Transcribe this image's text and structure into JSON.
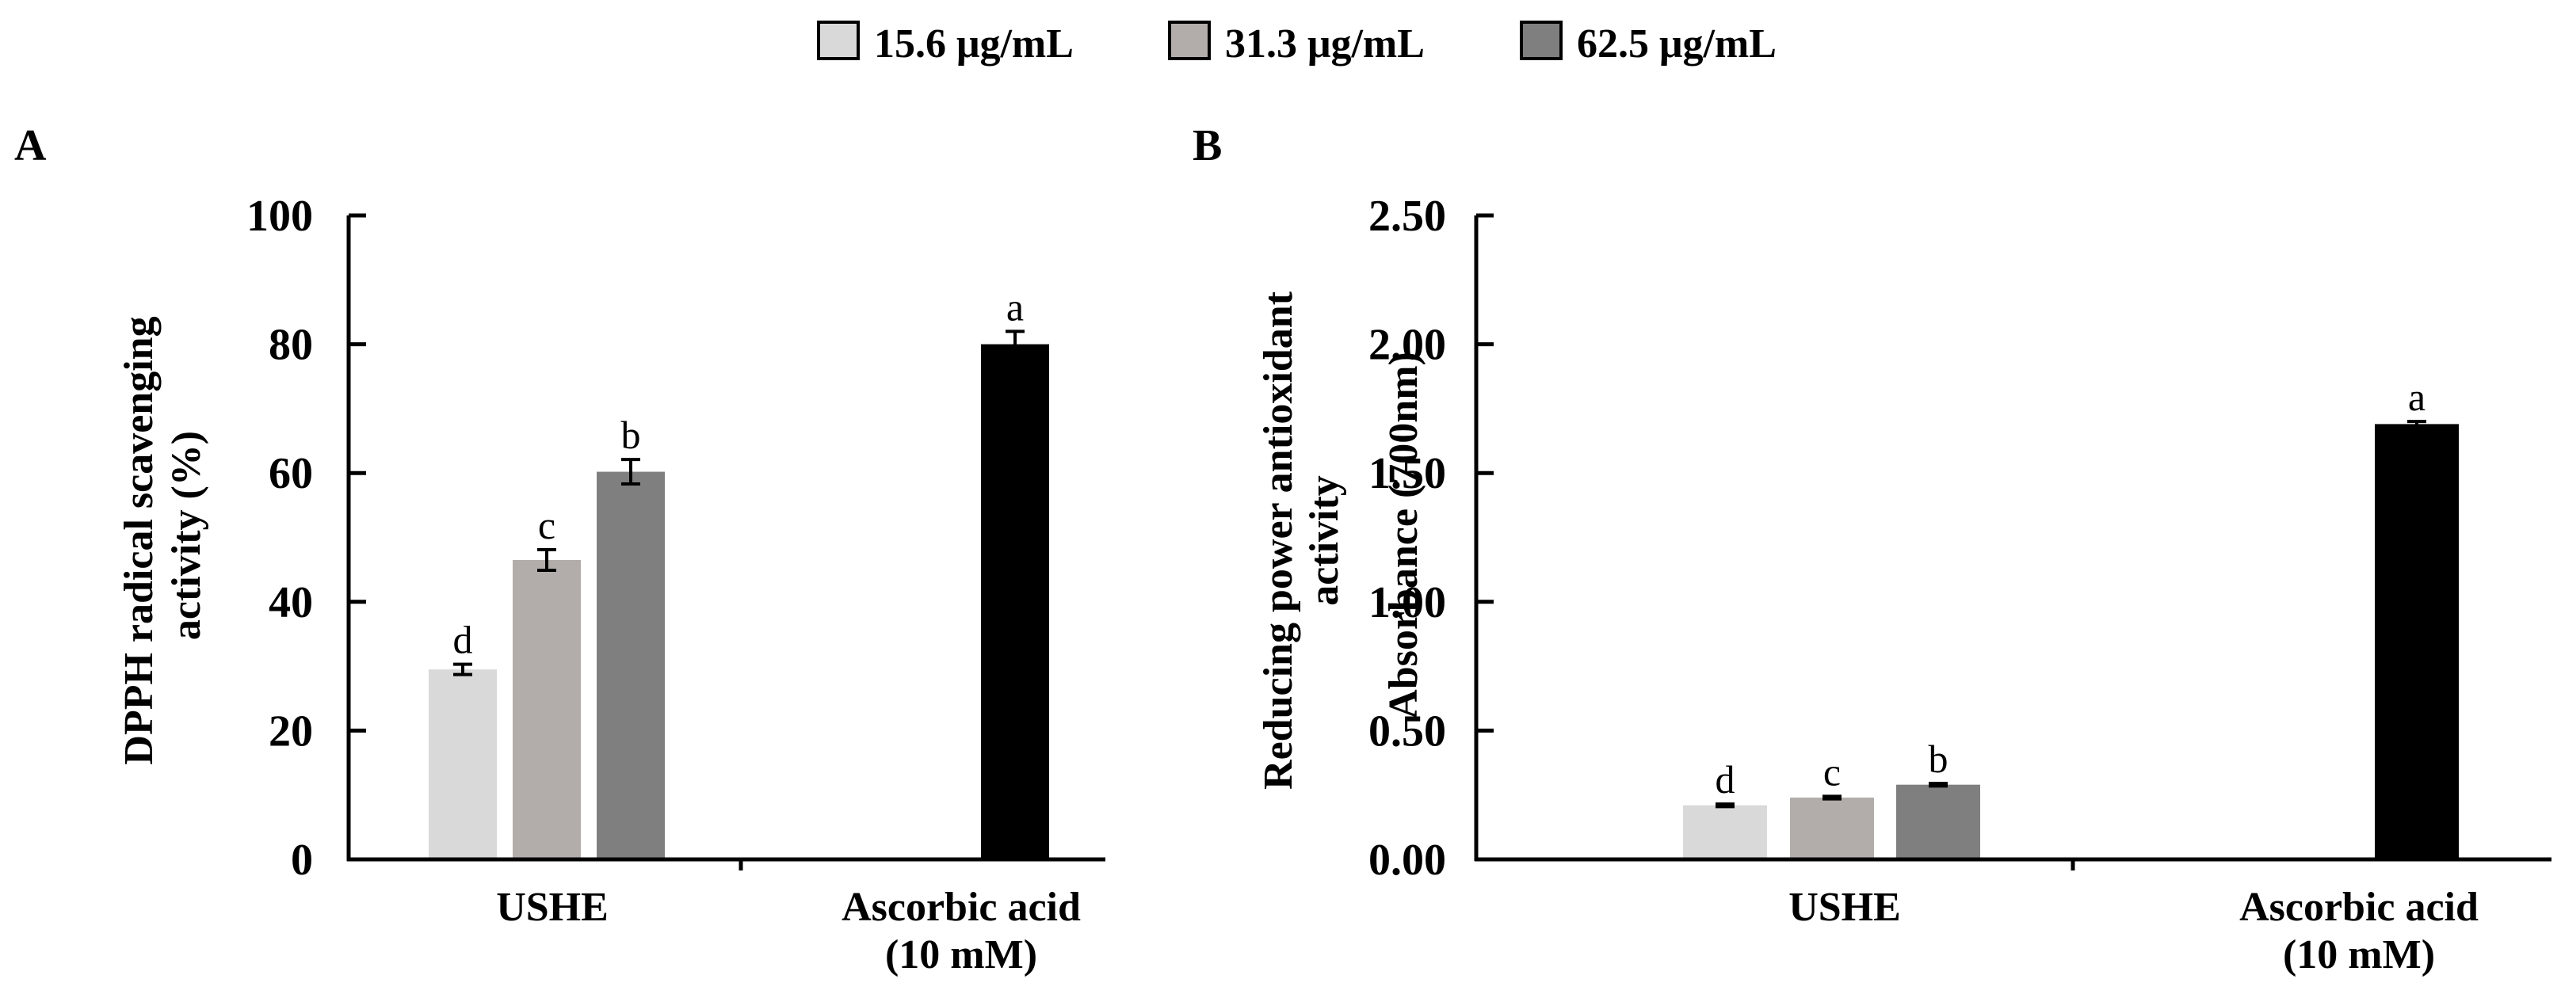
{
  "legend": [
    {
      "label": "15.6 μg/mL",
      "color": "#d9d9d9"
    },
    {
      "label": "31.3 μg/mL",
      "color": "#b2adab"
    },
    {
      "label": "62.5 μg/mL",
      "color": "#7f7f7f"
    }
  ],
  "bar_colors": {
    "ascorbic": "#000000",
    "axis": "#000000"
  },
  "chart_data": [
    {
      "type": "bar",
      "panel": "A",
      "title": "",
      "ylabel_lines": [
        "DPPH radical scavenging",
        "activity (%)"
      ],
      "xlabel": "",
      "ylim": [
        0,
        100
      ],
      "yticks": [
        0,
        20,
        40,
        60,
        80,
        100
      ],
      "ytick_labels": [
        "0",
        "20",
        "40",
        "60",
        "80",
        "100"
      ],
      "category_labels": [
        [
          "USHE"
        ],
        [
          "Ascorbic acid",
          "(10 mM)"
        ]
      ],
      "bars": [
        {
          "group": "USHE",
          "series": "15.6 μg/mL",
          "value": 29.5,
          "error": 0.8,
          "letter": "d"
        },
        {
          "group": "USHE",
          "series": "31.3 μg/mL",
          "value": 46.5,
          "error": 1.6,
          "letter": "c"
        },
        {
          "group": "USHE",
          "series": "62.5 μg/mL",
          "value": 60.2,
          "error": 1.9,
          "letter": "b"
        },
        {
          "group": "Ascorbic acid (10 mM)",
          "series": "Ascorbic acid",
          "value": 80.0,
          "error": 2.0,
          "letter": "a"
        }
      ]
    },
    {
      "type": "bar",
      "panel": "B",
      "title": "",
      "ylabel_lines": [
        "Reducing power antioxidant",
        "activity",
        "Absorbance (700nm)"
      ],
      "xlabel": "",
      "ylim": [
        0,
        2.5
      ],
      "yticks": [
        0,
        0.5,
        1.0,
        1.5,
        2.0,
        2.5
      ],
      "ytick_labels": [
        "0.00",
        "0.50",
        "1.00",
        "1.50",
        "2.00",
        "2.50"
      ],
      "category_labels": [
        [
          "USHE"
        ],
        [
          "Ascorbic acid",
          "(10 mM)"
        ]
      ],
      "bars": [
        {
          "group": "USHE",
          "series": "15.6 μg/mL",
          "value": 0.21,
          "error": 0.005,
          "letter": "d"
        },
        {
          "group": "USHE",
          "series": "31.3 μg/mL",
          "value": 0.24,
          "error": 0.005,
          "letter": "c"
        },
        {
          "group": "USHE",
          "series": "62.5 μg/mL",
          "value": 0.29,
          "error": 0.005,
          "letter": "b"
        },
        {
          "group": "Ascorbic acid (10 mM)",
          "series": "Ascorbic acid",
          "value": 1.69,
          "error": 0.01,
          "letter": "a"
        }
      ]
    }
  ]
}
